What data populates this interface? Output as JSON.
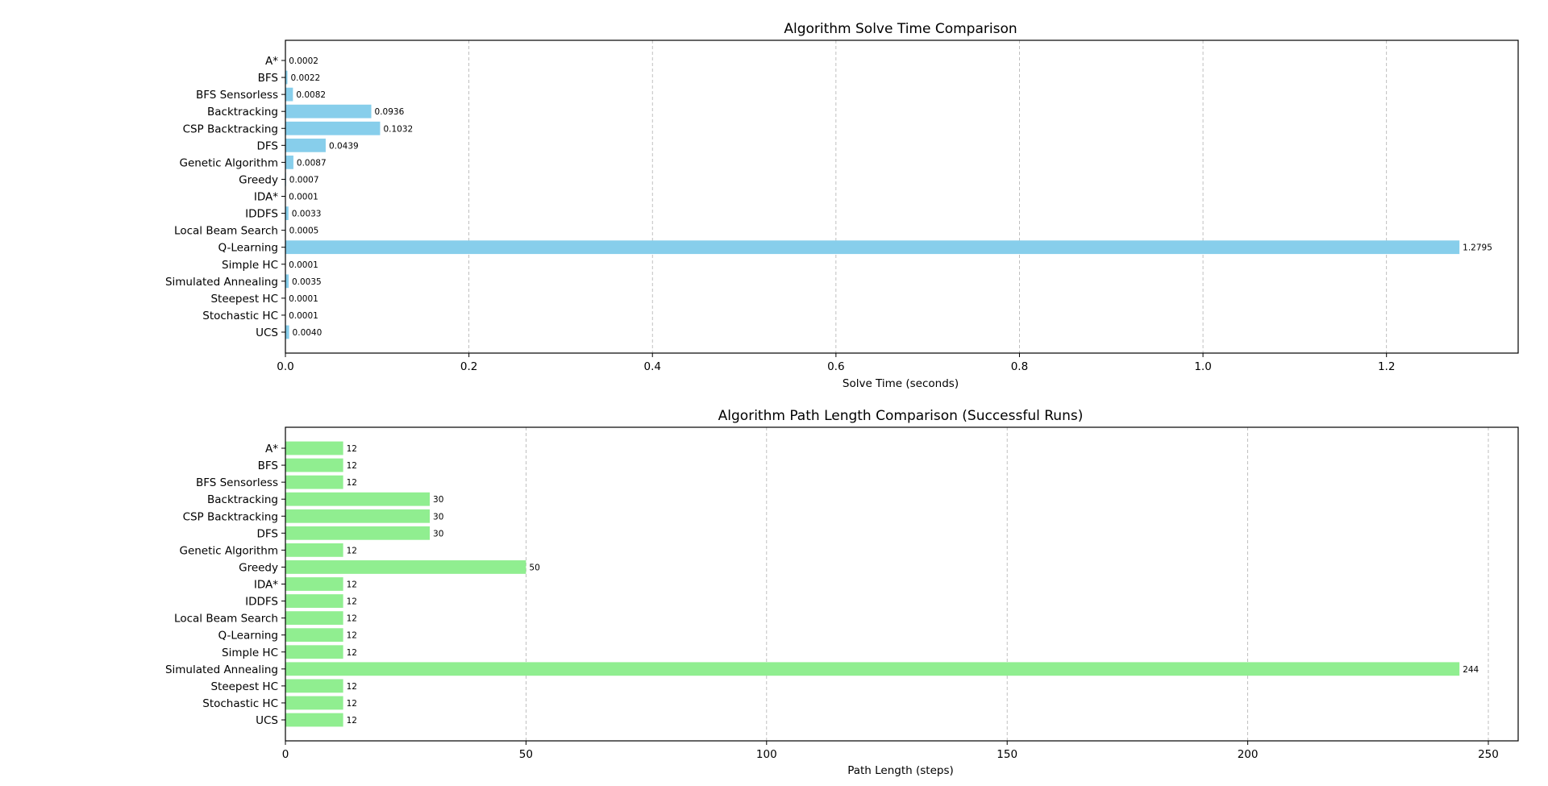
{
  "chart_data": [
    {
      "type": "bar",
      "orientation": "horizontal",
      "title": "Algorithm Solve Time Comparison",
      "xlabel": "Solve Time (seconds)",
      "ylabel": "",
      "categories": [
        "A*",
        "BFS",
        "BFS Sensorless",
        "Backtracking",
        "CSP Backtracking",
        "DFS",
        "Genetic Algorithm",
        "Greedy",
        "IDA*",
        "IDDFS",
        "Local Beam Search",
        "Q-Learning",
        "Simple HC",
        "Simulated Annealing",
        "Steepest HC",
        "Stochastic HC",
        "UCS"
      ],
      "values": [
        0.0002,
        0.0022,
        0.0082,
        0.0936,
        0.1032,
        0.0439,
        0.0087,
        0.0007,
        0.0001,
        0.0033,
        0.0005,
        1.2795,
        0.0001,
        0.0035,
        0.0001,
        0.0001,
        0.004
      ],
      "value_labels": [
        "0.0002",
        "0.0022",
        "0.0082",
        "0.0936",
        "0.1032",
        "0.0439",
        "0.0087",
        "0.0007",
        "0.0001",
        "0.0033",
        "0.0005",
        "1.2795",
        "0.0001",
        "0.0035",
        "0.0001",
        "0.0001",
        "0.0040"
      ],
      "xlim": [
        0,
        1.3435
      ],
      "xticks": [
        0.0,
        0.2,
        0.4,
        0.6,
        0.8,
        1.0,
        1.2
      ],
      "xtick_labels": [
        "0.0",
        "0.2",
        "0.4",
        "0.6",
        "0.8",
        "1.0",
        "1.2"
      ],
      "bar_color": "#87CEEB",
      "grid": "x, dashed"
    },
    {
      "type": "bar",
      "orientation": "horizontal",
      "title": "Algorithm Path Length Comparison (Successful Runs)",
      "xlabel": "Path Length (steps)",
      "ylabel": "",
      "categories": [
        "A*",
        "BFS",
        "BFS Sensorless",
        "Backtracking",
        "CSP Backtracking",
        "DFS",
        "Genetic Algorithm",
        "Greedy",
        "IDA*",
        "IDDFS",
        "Local Beam Search",
        "Q-Learning",
        "Simple HC",
        "Simulated Annealing",
        "Steepest HC",
        "Stochastic HC",
        "UCS"
      ],
      "values": [
        12,
        12,
        12,
        30,
        30,
        30,
        12,
        50,
        12,
        12,
        12,
        12,
        12,
        244,
        12,
        12,
        12
      ],
      "value_labels": [
        "12",
        "12",
        "12",
        "30",
        "30",
        "30",
        "12",
        "50",
        "12",
        "12",
        "12",
        "12",
        "12",
        "244",
        "12",
        "12",
        "12"
      ],
      "xlim": [
        0,
        256.2
      ],
      "xticks": [
        0,
        50,
        100,
        150,
        200,
        250
      ],
      "xtick_labels": [
        "0",
        "50",
        "100",
        "150",
        "200",
        "250"
      ],
      "bar_color": "#90EE90",
      "grid": "x, dashed"
    }
  ]
}
